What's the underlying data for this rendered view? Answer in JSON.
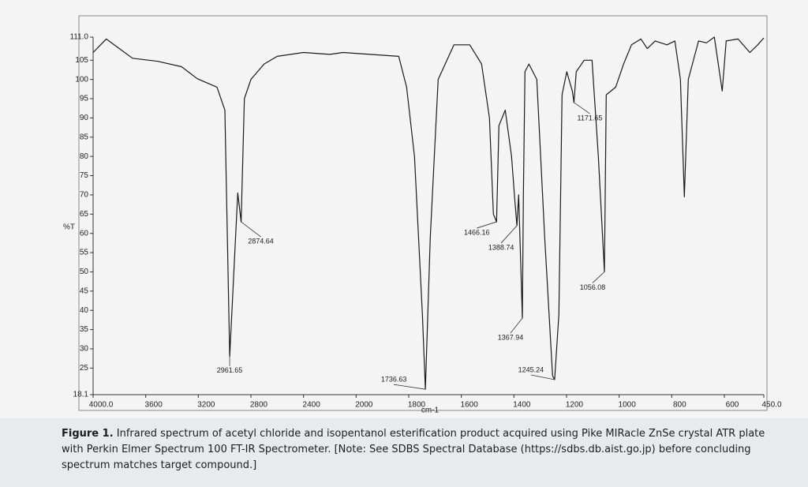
{
  "chart_data": {
    "type": "line",
    "x_label": "cm-1",
    "y_label": "%T",
    "color": "#1a1a1a",
    "x_reversed": true,
    "x_scale_change": {
      "at": 2000,
      "factor": 2
    },
    "xlim": [
      4000,
      450
    ],
    "ylim": [
      18.1,
      111.0
    ],
    "xticks": [
      {
        "value": 4000,
        "label": "4000.0"
      },
      3600,
      3200,
      2800,
      2400,
      2000,
      1800,
      1600,
      1400,
      1200,
      1000,
      800,
      600,
      {
        "value": 450,
        "label": "450.0"
      }
    ],
    "yticks": [
      {
        "value": 111,
        "label": "111.0"
      },
      105,
      100,
      95,
      90,
      85,
      80,
      75,
      70,
      65,
      60,
      55,
      50,
      45,
      40,
      35,
      30,
      25,
      18.1
    ],
    "x": [
      4000,
      3900,
      3800,
      3700,
      3508,
      3328,
      3208,
      3058,
      2998,
      2961.65,
      2900,
      2874.64,
      2850,
      2800,
      2700,
      2600,
      2400,
      2200,
      2100,
      1838,
      1808,
      1778,
      1748,
      1736.63,
      1718,
      1688,
      1628,
      1568,
      1523,
      1493,
      1478,
      1466.16,
      1457,
      1433,
      1409,
      1397,
      1388.74,
      1382,
      1367.94,
      1364,
      1358,
      1343,
      1313,
      1283,
      1253,
      1245.24,
      1229,
      1217,
      1199,
      1178,
      1171.65,
      1163,
      1133,
      1103,
      1079,
      1056.08,
      1049,
      1013,
      983,
      953,
      917,
      893,
      863,
      818,
      788,
      767,
      752,
      737,
      698,
      668,
      638,
      608,
      593,
      548,
      503,
      473,
      450
    ],
    "values": [
      107,
      110.5,
      108,
      105.5,
      104.7,
      103.3,
      100.2,
      98,
      92,
      28,
      70.5,
      63,
      95,
      100,
      104,
      106,
      107,
      106.5,
      107,
      106,
      98,
      80,
      39,
      19.5,
      59,
      100,
      109,
      109,
      104,
      90,
      65,
      63,
      88,
      92,
      80,
      69,
      62,
      70,
      38,
      70,
      102,
      104,
      100,
      59,
      23,
      22,
      39,
      96,
      102,
      97,
      94,
      102,
      105,
      105,
      80,
      50,
      96,
      98,
      104,
      109,
      110.5,
      108,
      110,
      109,
      110,
      100,
      69.5,
      100,
      110,
      109.5,
      111,
      97,
      110,
      110.5,
      107,
      109,
      110.8
    ],
    "annotations": [
      {
        "label": "2961.65",
        "x": 2961.65,
        "y": 28
      },
      {
        "label": "2874.64",
        "x": 2874.64,
        "y": 63
      },
      {
        "label": "1736.63",
        "x": 1736.63,
        "y": 19.5
      },
      {
        "label": "1466.16",
        "x": 1466.16,
        "y": 63
      },
      {
        "label": "1388.74",
        "x": 1388.74,
        "y": 62
      },
      {
        "label": "1367.94",
        "x": 1367.94,
        "y": 38
      },
      {
        "label": "1245.24",
        "x": 1245.24,
        "y": 22
      },
      {
        "label": "1171.65",
        "x": 1171.65,
        "y": 94
      },
      {
        "label": "1056.08",
        "x": 1056.08,
        "y": 50
      }
    ],
    "caption_label": "Figure 1.",
    "caption": "Infrared spectrum of acetyl chloride and isopentanol esterification product acquired using Pike MIRacle ZnSe crystal ATR plate with Perkin Elmer Spectrum 100 FT-IR Spectrometer. [Note: See SDBS Spectral Database (https://sdbs.db.aist.go.jp) before concluding spectrum matches target compound.]"
  }
}
